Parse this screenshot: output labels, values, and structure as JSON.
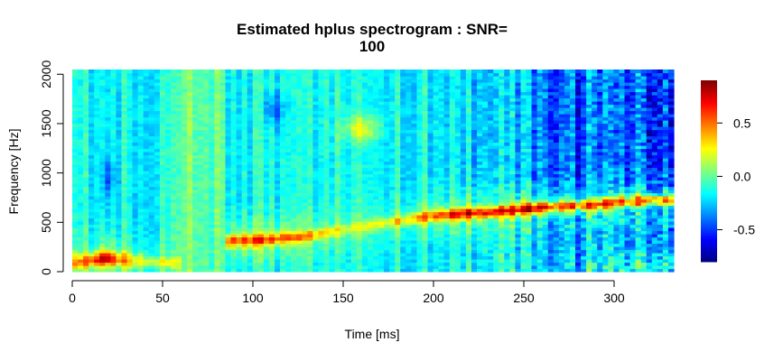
{
  "chart_data": {
    "type": "heatmap",
    "title_line1": "Estimated hplus spectrogram : SNR=",
    "title_line2": "100",
    "xlabel": "Time [ms]",
    "ylabel": "Frequency [Hz]",
    "xlim": [
      0,
      333
    ],
    "ylim": [
      0,
      2048
    ],
    "x_ticks": [
      0,
      50,
      100,
      150,
      200,
      250,
      300
    ],
    "x_tick_labels": [
      "0",
      "50",
      "100",
      "150",
      "200",
      "250",
      "300"
    ],
    "y_ticks": [
      0,
      500,
      1000,
      1500,
      2000
    ],
    "y_tick_labels": [
      "0",
      "500",
      "1000",
      "1500",
      "2000"
    ],
    "colorbar": {
      "range": [
        -0.8,
        0.9
      ],
      "ticks": [
        -0.5,
        0.0,
        0.5
      ],
      "tick_labels": [
        "-0.5",
        "0.0",
        "0.5"
      ]
    },
    "ridge": [
      {
        "t": 5,
        "f": 100,
        "amp": 0.45
      },
      {
        "t": 12,
        "f": 120,
        "amp": 0.55
      },
      {
        "t": 18,
        "f": 140,
        "amp": 0.8
      },
      {
        "t": 25,
        "f": 130,
        "amp": 0.5
      },
      {
        "t": 40,
        "f": 100,
        "amp": 0.3
      },
      {
        "t": 60,
        "f": 90,
        "amp": 0.2
      },
      {
        "t": 88,
        "f": 320,
        "amp": 0.55
      },
      {
        "t": 100,
        "f": 320,
        "amp": 0.6
      },
      {
        "t": 115,
        "f": 340,
        "amp": 0.55
      },
      {
        "t": 130,
        "f": 360,
        "amp": 0.45
      },
      {
        "t": 150,
        "f": 430,
        "amp": 0.25
      },
      {
        "t": 175,
        "f": 500,
        "amp": 0.3
      },
      {
        "t": 200,
        "f": 570,
        "amp": 0.55
      },
      {
        "t": 215,
        "f": 590,
        "amp": 0.7
      },
      {
        "t": 235,
        "f": 610,
        "amp": 0.65
      },
      {
        "t": 250,
        "f": 640,
        "amp": 0.8
      },
      {
        "t": 265,
        "f": 660,
        "amp": 0.75
      },
      {
        "t": 285,
        "f": 680,
        "amp": 0.7
      },
      {
        "t": 300,
        "f": 700,
        "amp": 0.75
      },
      {
        "t": 315,
        "f": 720,
        "amp": 0.7
      },
      {
        "t": 333,
        "f": 730,
        "amp": 0.7
      }
    ]
  }
}
